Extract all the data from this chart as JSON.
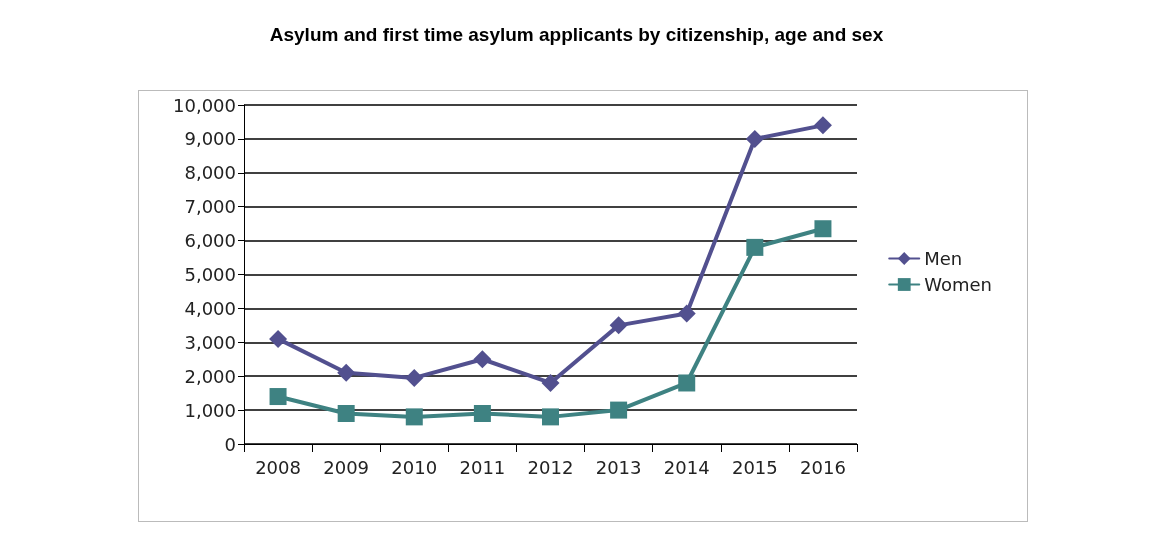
{
  "chart_data": {
    "type": "line",
    "title": "Asylum and first time asylum applicants by citizenship, age and sex",
    "categories": [
      "2008",
      "2009",
      "2010",
      "2011",
      "2012",
      "2013",
      "2014",
      "2015",
      "2016"
    ],
    "series": [
      {
        "name": "Men",
        "color": "#52508f",
        "marker": "diamond",
        "values": [
          3100,
          2100,
          1950,
          2500,
          1800,
          3500,
          3850,
          9000,
          9400
        ]
      },
      {
        "name": "Women",
        "color": "#3e8282",
        "marker": "square",
        "values": [
          1400,
          900,
          800,
          900,
          800,
          1000,
          1800,
          5800,
          6350
        ]
      }
    ],
    "ylim": [
      0,
      10000
    ],
    "yticks": [
      0,
      {
        "value": 1000,
        "label": "1,000"
      },
      {
        "value": 2000,
        "label": "2,000"
      },
      {
        "value": 3000,
        "label": "3,000"
      },
      {
        "value": 4000,
        "label": "4,000"
      },
      {
        "value": 5000,
        "label": "5,000"
      },
      {
        "value": 6000,
        "label": "6,000"
      },
      {
        "value": 7000,
        "label": "7,000"
      },
      {
        "value": 8000,
        "label": "8,000"
      },
      {
        "value": 9000,
        "label": "9,000"
      },
      {
        "value": 10000,
        "label": "10,000"
      }
    ],
    "grid": "y",
    "legend": "right",
    "line_style": "solid"
  }
}
